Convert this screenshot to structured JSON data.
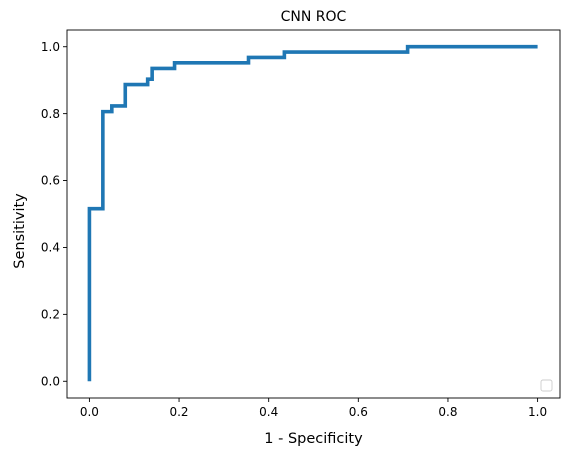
{
  "chart_data": {
    "type": "line",
    "title": "CNN ROC",
    "xlabel": "1 - Specificity",
    "ylabel": "Sensitivity",
    "xlim": [
      -0.05,
      1.05
    ],
    "ylim": [
      -0.05,
      1.05
    ],
    "x_ticks": [
      "0.0",
      "0.2",
      "0.4",
      "0.6",
      "0.8",
      "1.0"
    ],
    "y_ticks": [
      "0.0",
      "0.2",
      "0.4",
      "0.6",
      "0.8",
      "1.0"
    ],
    "grid": false,
    "legend": {
      "placement": "lower right",
      "entries": []
    },
    "series": [
      {
        "color": "#1f77b4",
        "step": true,
        "x": [
          0.0,
          0.0,
          0.03,
          0.03,
          0.05,
          0.05,
          0.08,
          0.08,
          0.13,
          0.13,
          0.14,
          0.14,
          0.19,
          0.19,
          0.355,
          0.355,
          0.435,
          0.435,
          0.71,
          0.71,
          1.0
        ],
        "y": [
          0.0,
          0.516,
          0.516,
          0.806,
          0.806,
          0.823,
          0.823,
          0.887,
          0.887,
          0.903,
          0.903,
          0.935,
          0.935,
          0.952,
          0.952,
          0.968,
          0.968,
          0.984,
          0.984,
          1.0,
          1.0
        ]
      }
    ]
  }
}
